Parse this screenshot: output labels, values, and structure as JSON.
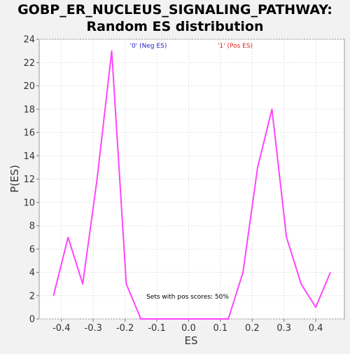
{
  "chart_data": {
    "type": "line",
    "title_line1": "GOBP_ER_NUCLEUS_SIGNALING_PATHWAY:",
    "title_line2": "Random ES distribution",
    "xlabel": "ES",
    "ylabel": "P(ES)",
    "xlim": [
      -0.47,
      0.49
    ],
    "ylim": [
      0,
      24
    ],
    "x_ticks": [
      -0.4,
      -0.3,
      -0.2,
      -0.1,
      0.0,
      0.1,
      0.2,
      0.3,
      0.4
    ],
    "x_tick_labels": [
      "-0.4",
      "-0.3",
      "-0.2",
      "-0.1",
      "0.0",
      "0.1",
      "0.2",
      "0.3",
      "0.4"
    ],
    "y_ticks": [
      0,
      2,
      4,
      6,
      8,
      10,
      12,
      14,
      16,
      18,
      20,
      22,
      24
    ],
    "y_tick_labels": [
      "0",
      "2",
      "4",
      "6",
      "8",
      "10",
      "12",
      "14",
      "16",
      "18",
      "20",
      "22",
      "24"
    ],
    "grid": true,
    "line_color": "#ff44ff",
    "series": [
      {
        "x": [
          -0.425,
          -0.379,
          -0.333,
          -0.288,
          -0.242,
          -0.196,
          -0.15,
          -0.104,
          -0.058,
          -0.012,
          0.033,
          0.079,
          0.125,
          0.171,
          0.217,
          0.262,
          0.308,
          0.354,
          0.4,
          0.446
        ],
        "y": [
          2,
          7,
          3,
          12,
          23,
          3,
          0,
          0,
          0,
          0,
          0,
          0,
          0,
          4,
          13,
          18,
          7,
          3,
          1,
          4
        ]
      }
    ],
    "legend": [
      {
        "label": "'0' (Neg ES)",
        "color": "#2222cc"
      },
      {
        "label": "'1' (Pos ES)",
        "color": "#dd2222"
      }
    ],
    "annotation": "Sets with pos scores: 50%"
  }
}
